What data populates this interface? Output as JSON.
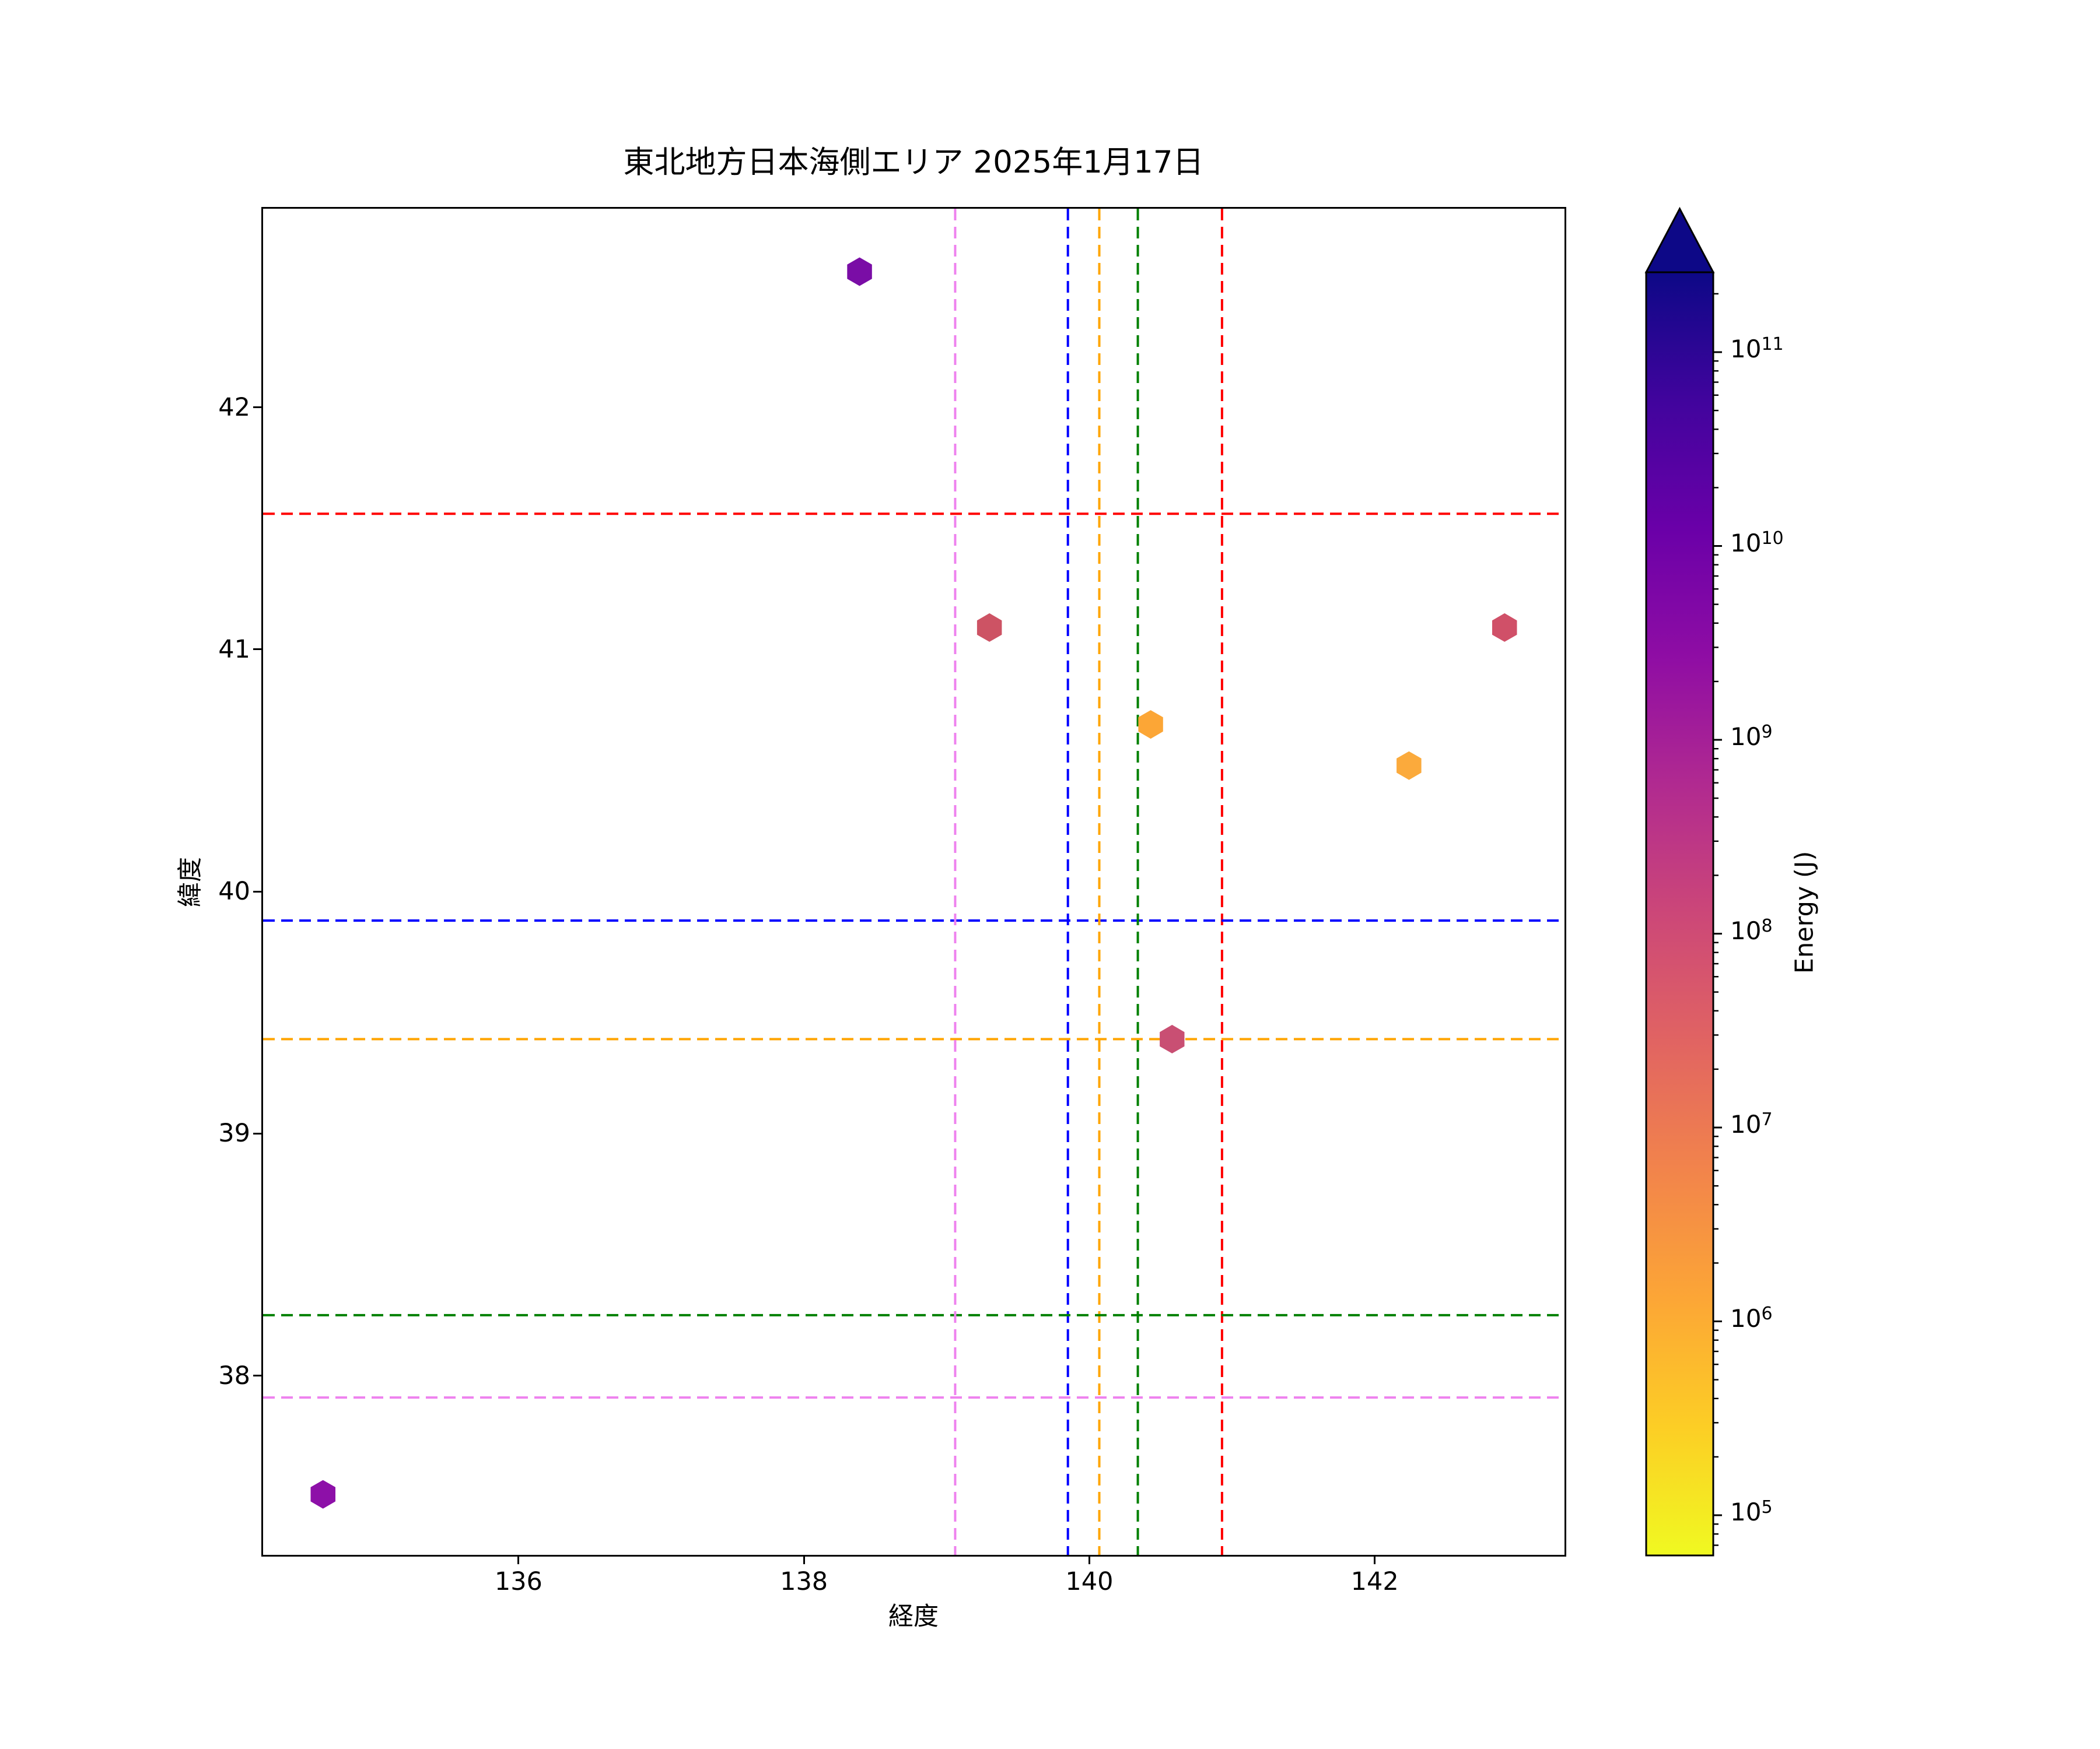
{
  "figure": {
    "background": "#ffffff"
  },
  "chart_data": {
    "type": "scatter",
    "title": "東北地方日本海側エリア 2025年1月17日",
    "xlabel": "経度",
    "ylabel": "緯度",
    "xlim": [
      134.21,
      143.33
    ],
    "ylim": [
      37.26,
      42.82
    ],
    "xticks": [
      136,
      138,
      140,
      142
    ],
    "yticks": [
      38,
      39,
      40,
      41,
      42
    ],
    "grid": false,
    "legend": "none",
    "marker_shape": "hexagon",
    "points": [
      {
        "lon": 138.39,
        "lat": 42.56,
        "color": "#7a0da6",
        "energy_j_approx": 10000000000.0
      },
      {
        "lon": 139.3,
        "lat": 41.09,
        "color": "#cd5364",
        "energy_j_approx": 50000000.0
      },
      {
        "lon": 142.91,
        "lat": 41.09,
        "color": "#d05068",
        "energy_j_approx": 50000000.0
      },
      {
        "lon": 140.43,
        "lat": 40.69,
        "color": "#fca636",
        "energy_j_approx": 1500000.0
      },
      {
        "lon": 142.24,
        "lat": 40.52,
        "color": "#fbaa3c",
        "energy_j_approx": 1300000.0
      },
      {
        "lon": 140.58,
        "lat": 39.39,
        "color": "#c94f73",
        "energy_j_approx": 80000000.0
      },
      {
        "lon": 134.63,
        "lat": 37.51,
        "color": "#8d10a8",
        "energy_j_approx": 5000000000.0
      }
    ],
    "crosshair_lines": [
      {
        "name": "red",
        "color": "#ff0000",
        "lon": 140.93,
        "lat": 41.56
      },
      {
        "name": "blue",
        "color": "#0000ff",
        "lon": 139.85,
        "lat": 39.88
      },
      {
        "name": "orange",
        "color": "#ffa500",
        "lon": 140.07,
        "lat": 39.39
      },
      {
        "name": "green",
        "color": "#008000",
        "lon": 140.34,
        "lat": 38.25
      },
      {
        "name": "violet",
        "color": "#ee82ee",
        "lon": 139.06,
        "lat": 37.91
      }
    ],
    "line_style": "dashed",
    "colorbar": {
      "label": "Energy (J)",
      "scale": "log",
      "extend": "max",
      "ticks": [
        "10^5",
        "10^6",
        "10^7",
        "10^8",
        "10^9",
        "10^10",
        "10^11"
      ],
      "tick_exponents": [
        5,
        6,
        7,
        8,
        9,
        10,
        11
      ],
      "range_approx": [
        60000.0,
        260000000000.0
      ],
      "colormap": "plasma_r",
      "gradient_top_to_bottom": [
        "#0d0887",
        "#41049d",
        "#6a00a8",
        "#8f0da4",
        "#b12a90",
        "#cc4778",
        "#e16462",
        "#f2844b",
        "#fca636",
        "#fcce25",
        "#f0f921"
      ]
    }
  }
}
